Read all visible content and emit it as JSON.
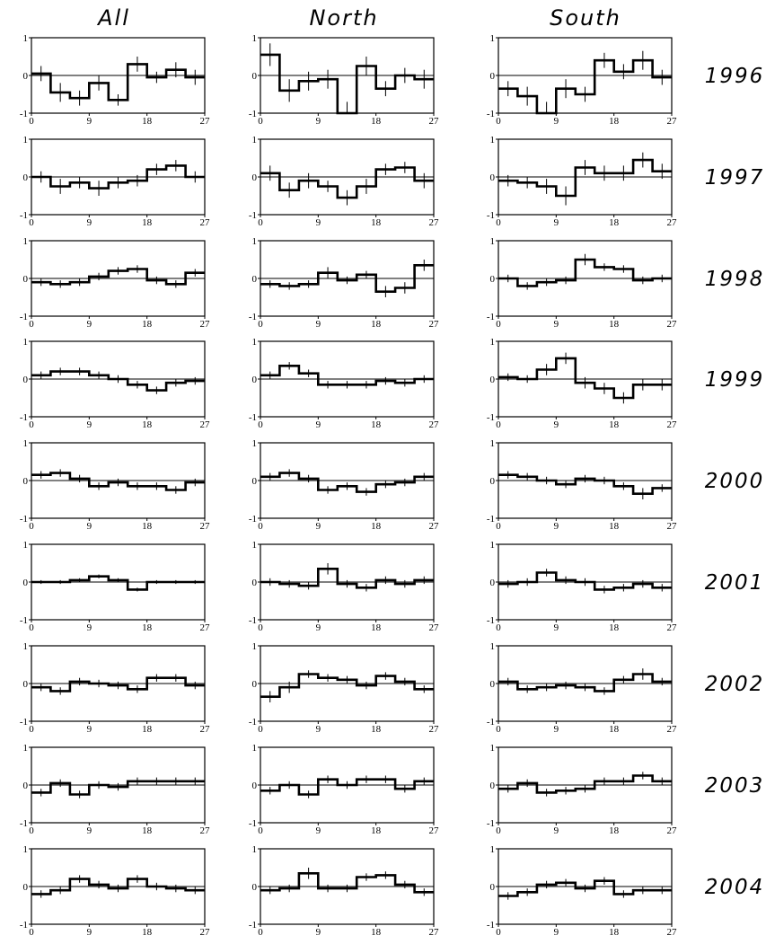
{
  "chart_data": {
    "type": "step-grid",
    "columns": [
      "All",
      "North",
      "South"
    ],
    "rows": [
      "1996",
      "1997",
      "1998",
      "1999",
      "2000",
      "2001",
      "2002",
      "2003",
      "2004"
    ],
    "xticks": [
      "0",
      "9",
      "18",
      "27"
    ],
    "yticks": [
      "1",
      "0",
      "-1"
    ],
    "xlim": [
      0,
      27
    ],
    "ylim": [
      -1,
      1
    ],
    "bin_width": 3,
    "panels": [
      [
        {
          "values": [
            0.05,
            -0.45,
            -0.6,
            -0.2,
            -0.65,
            0.3,
            -0.05,
            0.15,
            -0.05
          ],
          "errors": [
            0.2,
            0.25,
            0.2,
            0.2,
            0.15,
            0.2,
            0.15,
            0.2,
            0.2
          ]
        },
        {
          "values": [
            0.0,
            -0.25,
            -0.15,
            -0.3,
            -0.15,
            -0.1,
            0.2,
            0.3,
            0.0
          ],
          "errors": [
            0.15,
            0.2,
            0.15,
            0.2,
            0.15,
            0.15,
            0.15,
            0.15,
            0.15
          ]
        },
        {
          "values": [
            -0.1,
            -0.15,
            -0.1,
            0.05,
            0.2,
            0.25,
            -0.05,
            -0.15,
            0.15
          ],
          "errors": [
            0.1,
            0.1,
            0.1,
            0.1,
            0.1,
            0.1,
            0.1,
            0.1,
            0.1
          ]
        },
        {
          "values": [
            0.1,
            0.2,
            0.2,
            0.1,
            0.0,
            -0.15,
            -0.3,
            -0.1,
            -0.05
          ],
          "errors": [
            0.1,
            0.1,
            0.1,
            0.1,
            0.1,
            0.1,
            0.1,
            0.1,
            0.1
          ]
        },
        {
          "values": [
            0.15,
            0.2,
            0.05,
            -0.15,
            -0.05,
            -0.15,
            -0.15,
            -0.25,
            -0.05
          ],
          "errors": [
            0.1,
            0.1,
            0.1,
            0.1,
            0.1,
            0.1,
            0.1,
            0.1,
            0.1
          ]
        },
        {
          "values": [
            0.0,
            0.0,
            0.05,
            0.15,
            0.05,
            -0.2,
            0.0,
            0.0,
            0.0
          ],
          "errors": [
            0.05,
            0.05,
            0.05,
            0.05,
            0.05,
            0.05,
            0.05,
            0.05,
            0.05
          ]
        },
        {
          "values": [
            -0.1,
            -0.2,
            0.05,
            0.0,
            -0.05,
            -0.15,
            0.15,
            0.15,
            -0.05
          ],
          "errors": [
            0.1,
            0.1,
            0.1,
            0.1,
            0.1,
            0.1,
            0.1,
            0.1,
            0.1
          ]
        },
        {
          "values": [
            -0.2,
            0.05,
            -0.25,
            0.0,
            -0.05,
            0.1,
            0.1,
            0.1,
            0.1
          ],
          "errors": [
            0.1,
            0.1,
            0.1,
            0.1,
            0.1,
            0.1,
            0.1,
            0.1,
            0.1
          ]
        },
        {
          "values": [
            -0.2,
            -0.1,
            0.2,
            0.05,
            -0.05,
            0.2,
            0.0,
            -0.05,
            -0.1
          ],
          "errors": [
            0.1,
            0.1,
            0.1,
            0.1,
            0.1,
            0.1,
            0.1,
            0.1,
            0.1
          ]
        }
      ],
      [
        {
          "values": [
            0.55,
            -0.4,
            -0.15,
            -0.1,
            -1.0,
            0.25,
            -0.35,
            0.0,
            -0.1
          ],
          "errors": [
            0.3,
            0.3,
            0.25,
            0.25,
            0.3,
            0.25,
            0.2,
            0.2,
            0.25
          ]
        },
        {
          "values": [
            0.1,
            -0.35,
            -0.1,
            -0.25,
            -0.55,
            -0.25,
            0.2,
            0.25,
            -0.1
          ],
          "errors": [
            0.2,
            0.2,
            0.2,
            0.15,
            0.2,
            0.2,
            0.15,
            0.15,
            0.2
          ]
        },
        {
          "values": [
            -0.15,
            -0.2,
            -0.15,
            0.15,
            -0.05,
            0.1,
            -0.35,
            -0.25,
            0.35
          ],
          "errors": [
            0.1,
            0.1,
            0.1,
            0.15,
            0.1,
            0.1,
            0.15,
            0.15,
            0.15
          ]
        },
        {
          "values": [
            0.1,
            0.35,
            0.15,
            -0.15,
            -0.15,
            -0.15,
            -0.05,
            -0.1,
            0.0
          ],
          "errors": [
            0.1,
            0.1,
            0.1,
            0.1,
            0.1,
            0.1,
            0.1,
            0.1,
            0.1
          ]
        },
        {
          "values": [
            0.1,
            0.2,
            0.05,
            -0.25,
            -0.15,
            -0.3,
            -0.1,
            -0.05,
            0.1
          ],
          "errors": [
            0.1,
            0.1,
            0.1,
            0.1,
            0.1,
            0.1,
            0.1,
            0.1,
            0.1
          ]
        },
        {
          "values": [
            0.0,
            -0.05,
            -0.1,
            0.35,
            -0.05,
            -0.15,
            0.05,
            -0.05,
            0.05
          ],
          "errors": [
            0.1,
            0.1,
            0.1,
            0.15,
            0.1,
            0.1,
            0.1,
            0.1,
            0.1
          ]
        },
        {
          "values": [
            -0.35,
            -0.1,
            0.25,
            0.15,
            0.1,
            -0.05,
            0.2,
            0.05,
            -0.15
          ],
          "errors": [
            0.15,
            0.15,
            0.1,
            0.1,
            0.1,
            0.1,
            0.1,
            0.1,
            0.1
          ]
        },
        {
          "values": [
            -0.15,
            0.0,
            -0.25,
            0.15,
            0.0,
            0.15,
            0.15,
            -0.1,
            0.1
          ],
          "errors": [
            0.1,
            0.1,
            0.1,
            0.1,
            0.1,
            0.1,
            0.1,
            0.1,
            0.1
          ]
        },
        {
          "values": [
            -0.1,
            -0.05,
            0.35,
            -0.05,
            -0.05,
            0.25,
            0.3,
            0.05,
            -0.15
          ],
          "errors": [
            0.1,
            0.1,
            0.15,
            0.1,
            0.1,
            0.1,
            0.1,
            0.1,
            0.1
          ]
        }
      ],
      [
        {
          "values": [
            -0.35,
            -0.55,
            -1.0,
            -0.35,
            -0.5,
            0.4,
            0.1,
            0.4,
            -0.05
          ],
          "errors": [
            0.2,
            0.25,
            0.3,
            0.25,
            0.2,
            0.2,
            0.2,
            0.25,
            0.2
          ]
        },
        {
          "values": [
            -0.1,
            -0.15,
            -0.25,
            -0.5,
            0.25,
            0.1,
            0.1,
            0.45,
            0.15
          ],
          "errors": [
            0.15,
            0.15,
            0.2,
            0.25,
            0.2,
            0.2,
            0.2,
            0.2,
            0.2
          ]
        },
        {
          "values": [
            0.0,
            -0.2,
            -0.1,
            -0.05,
            0.5,
            0.3,
            0.25,
            -0.05,
            0.0
          ],
          "errors": [
            0.1,
            0.1,
            0.1,
            0.1,
            0.15,
            0.1,
            0.1,
            0.1,
            0.1
          ]
        },
        {
          "values": [
            0.05,
            0.0,
            0.25,
            0.55,
            -0.1,
            -0.25,
            -0.5,
            -0.15,
            -0.15
          ],
          "errors": [
            0.1,
            0.1,
            0.15,
            0.15,
            0.15,
            0.15,
            0.15,
            0.15,
            0.15
          ]
        },
        {
          "values": [
            0.15,
            0.1,
            0.0,
            -0.1,
            0.05,
            0.0,
            -0.15,
            -0.35,
            -0.2
          ],
          "errors": [
            0.1,
            0.1,
            0.1,
            0.1,
            0.1,
            0.1,
            0.1,
            0.15,
            0.1
          ]
        },
        {
          "values": [
            -0.05,
            0.0,
            0.25,
            0.05,
            0.0,
            -0.2,
            -0.15,
            -0.05,
            -0.15
          ],
          "errors": [
            0.1,
            0.1,
            0.1,
            0.1,
            0.1,
            0.1,
            0.1,
            0.1,
            0.1
          ]
        },
        {
          "values": [
            0.05,
            -0.15,
            -0.1,
            -0.05,
            -0.1,
            -0.2,
            0.1,
            0.25,
            0.05
          ],
          "errors": [
            0.1,
            0.1,
            0.1,
            0.1,
            0.1,
            0.1,
            0.1,
            0.15,
            0.1
          ]
        },
        {
          "values": [
            -0.1,
            0.05,
            -0.2,
            -0.15,
            -0.1,
            0.1,
            0.1,
            0.25,
            0.1
          ],
          "errors": [
            0.1,
            0.1,
            0.1,
            0.1,
            0.1,
            0.1,
            0.1,
            0.1,
            0.1
          ]
        },
        {
          "values": [
            -0.25,
            -0.15,
            0.05,
            0.1,
            -0.05,
            0.15,
            -0.2,
            -0.1,
            -0.1
          ],
          "errors": [
            0.1,
            0.1,
            0.1,
            0.1,
            0.1,
            0.1,
            0.1,
            0.1,
            0.1
          ]
        }
      ]
    ]
  }
}
